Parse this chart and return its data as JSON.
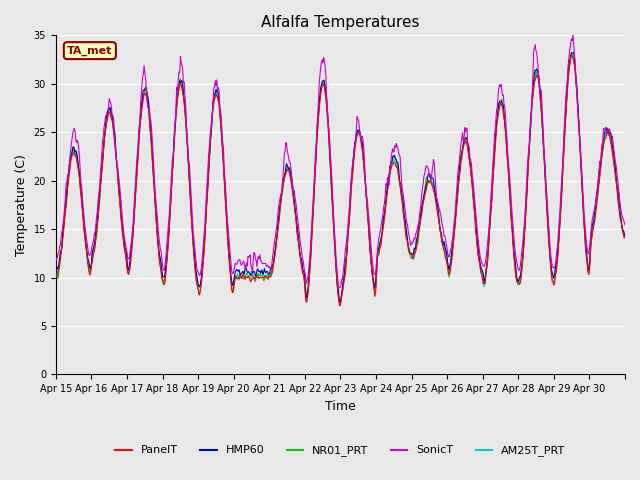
{
  "title": "Alfalfa Temperatures",
  "xlabel": "Time",
  "ylabel": "Temperature (C)",
  "ylim": [
    0,
    35
  ],
  "yticks": [
    0,
    5,
    10,
    15,
    20,
    25,
    30,
    35
  ],
  "x_labels": [
    "Apr 15",
    "Apr 16",
    "Apr 17",
    "Apr 18",
    "Apr 19",
    "Apr 20",
    "Apr 21",
    "Apr 22",
    "Apr 23",
    "Apr 24",
    "Apr 25",
    "Apr 26",
    "Apr 27",
    "Apr 28",
    "Apr 29",
    "Apr 30"
  ],
  "n_days": 16,
  "points_per_day": 48,
  "annotation_text": "TA_met",
  "annotation_color": "#8B0000",
  "annotation_bg": "#FFFFC0",
  "annotation_border": "#8B0000",
  "lines": [
    {
      "label": "PanelT",
      "color": "#FF0000",
      "zorder": 5
    },
    {
      "label": "HMP60",
      "color": "#0000CC",
      "zorder": 4
    },
    {
      "label": "NR01_PRT",
      "color": "#00CC00",
      "zorder": 3
    },
    {
      "label": "SonicT",
      "color": "#CC00CC",
      "zorder": 6
    },
    {
      "label": "AM25T_PRT",
      "color": "#00CCCC",
      "zorder": 2
    }
  ],
  "bg_color": "#E8E8E8",
  "plot_bg": "#E8E8E8",
  "grid_color": "#FFFFFF",
  "diurnal_peaks": [
    23,
    27,
    29,
    30,
    29,
    10,
    21,
    30,
    25,
    22,
    20,
    24,
    28,
    31,
    33,
    25
  ],
  "diurnal_troughs": [
    10,
    12,
    10,
    9,
    8,
    10,
    10,
    7,
    8,
    12,
    12,
    10,
    9,
    9,
    10,
    14
  ]
}
